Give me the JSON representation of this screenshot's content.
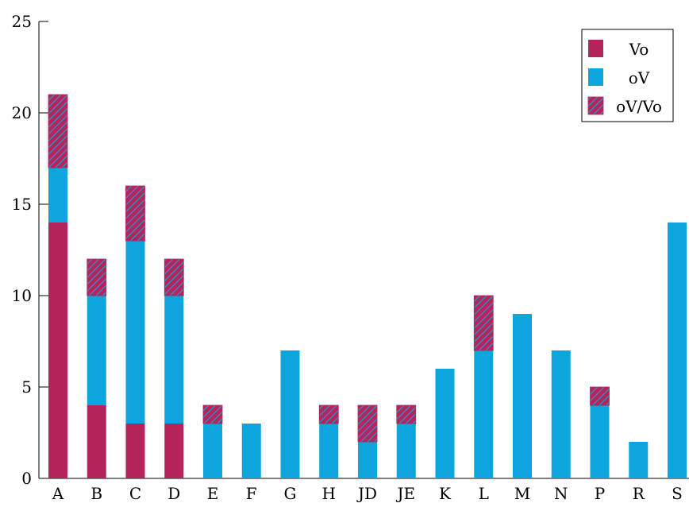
{
  "chart_data": {
    "type": "bar",
    "stacked": true,
    "title": "",
    "xlabel": "",
    "ylabel": "",
    "ylim": [
      0,
      25
    ],
    "yticks": [
      0,
      5,
      10,
      15,
      20,
      25
    ],
    "categories": [
      "A",
      "B",
      "C",
      "D",
      "E",
      "F",
      "G",
      "H",
      "JD",
      "JE",
      "K",
      "L",
      "M",
      "N",
      "P",
      "R",
      "S"
    ],
    "series": [
      {
        "name": "Vo",
        "color": "#b5245a",
        "pattern": "solid",
        "values": [
          14,
          4,
          3,
          3,
          0,
          0,
          0,
          0,
          0,
          0,
          0,
          0,
          0,
          0,
          0,
          0,
          0
        ]
      },
      {
        "name": "oV",
        "color": "#0ea5dd",
        "pattern": "solid",
        "values": [
          3,
          6,
          10,
          7,
          3,
          3,
          7,
          3,
          2,
          3,
          6,
          7,
          9,
          7,
          4,
          2,
          14
        ]
      },
      {
        "name": "oV/Vo",
        "color": "#b5245a",
        "stripe_color": "#0ea5dd",
        "pattern": "hatch",
        "values": [
          4,
          2,
          3,
          2,
          1,
          0,
          0,
          1,
          2,
          1,
          0,
          3,
          0,
          0,
          1,
          0,
          0
        ]
      }
    ],
    "legend": {
      "position": "top-right"
    },
    "grid": false
  }
}
